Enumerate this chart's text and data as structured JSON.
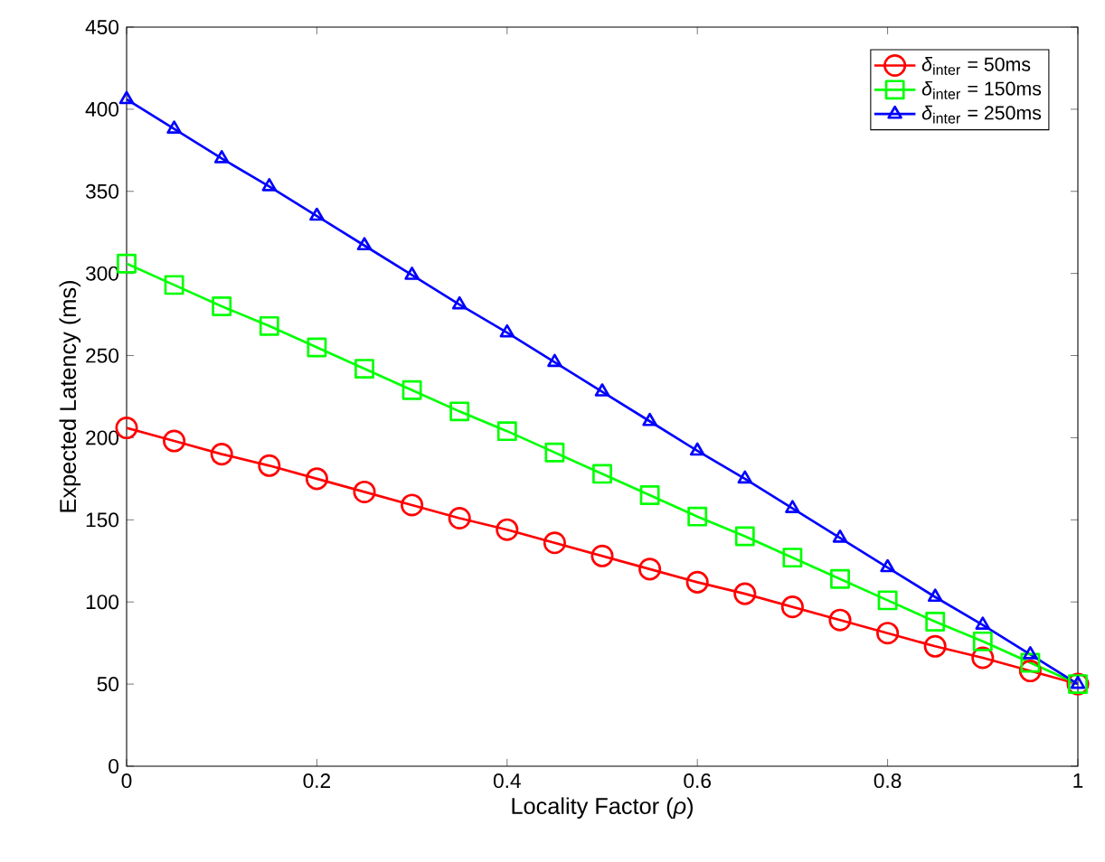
{
  "chart_data": {
    "type": "line",
    "xlabel": "Locality Factor (*ρ*)",
    "ylabel": "Expected Latency (ms)",
    "x": [
      0,
      0.05,
      0.1,
      0.15,
      0.2,
      0.25,
      0.3,
      0.35,
      0.4,
      0.45,
      0.5,
      0.55,
      0.6,
      0.65,
      0.7,
      0.75,
      0.8,
      0.85,
      0.9,
      0.95,
      1
    ],
    "series": [
      {
        "name": "*δ*$_{inter}$ = 50ms",
        "color": "#ff0000",
        "marker": "circle",
        "values": [
          206,
          198,
          190,
          183,
          175,
          167,
          159,
          151,
          144,
          136,
          128,
          120,
          112,
          105,
          97,
          89,
          81,
          73,
          66,
          58,
          50
        ]
      },
      {
        "name": "*δ*$_{inter}$ = 150ms",
        "color": "#00ff00",
        "marker": "square",
        "values": [
          306,
          293,
          280,
          268,
          255,
          242,
          229,
          216,
          204,
          191,
          178,
          165,
          152,
          140,
          127,
          114,
          101,
          88,
          76,
          63,
          50
        ]
      },
      {
        "name": "*δ*$_{inter}$ = 250ms",
        "color": "#0000ff",
        "marker": "triangle",
        "values": [
          406,
          388,
          370,
          353,
          335,
          317,
          299,
          281,
          264,
          246,
          228,
          210,
          192,
          175,
          157,
          139,
          121,
          103,
          86,
          68,
          50
        ]
      }
    ],
    "xlim": [
      0,
      1
    ],
    "xticks": [
      0,
      0.2,
      0.4,
      0.6,
      0.8,
      1
    ],
    "ylim": [
      0,
      450
    ],
    "yticks": [
      0,
      50,
      100,
      150,
      200,
      250,
      300,
      350,
      400,
      450
    ],
    "legend": "top right",
    "grid": false,
    "line_style": "solid"
  }
}
